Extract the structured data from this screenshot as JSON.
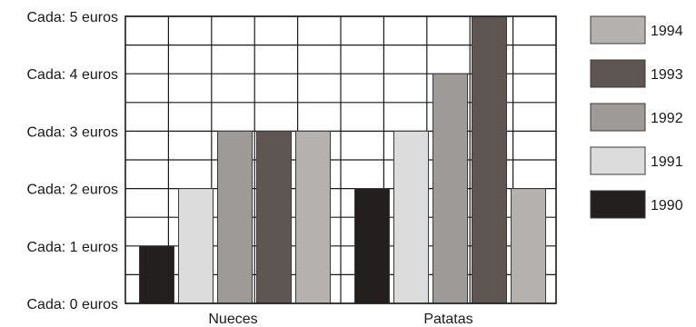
{
  "chart_data": {
    "type": "bar",
    "categories": [
      "Nueces",
      "Patatas"
    ],
    "series": [
      {
        "name": "1990",
        "values": [
          1,
          2
        ],
        "color": "#231f1e"
      },
      {
        "name": "1991",
        "values": [
          2,
          3
        ],
        "color": "#dcdcdc"
      },
      {
        "name": "1992",
        "values": [
          3,
          4
        ],
        "color": "#9e9a98"
      },
      {
        "name": "1993",
        "values": [
          3,
          5
        ],
        "color": "#5d5653"
      },
      {
        "name": "1994",
        "values": [
          3,
          2
        ],
        "color": "#b4b1af"
      }
    ],
    "y_ticks": [
      {
        "value": 0,
        "label": "Cada: 0 euros"
      },
      {
        "value": 1,
        "label": "Cada: 1 euros"
      },
      {
        "value": 2,
        "label": "Cada: 2 euros"
      },
      {
        "value": 3,
        "label": "Cada: 3 euros"
      },
      {
        "value": 4,
        "label": "Cada: 4 euros"
      },
      {
        "value": 5,
        "label": "Cada: 5 euros"
      }
    ],
    "ylim": [
      0,
      5
    ],
    "grid": true,
    "legend_position": "right",
    "legend_order": [
      "1994",
      "1993",
      "1992",
      "1991",
      "1990"
    ]
  }
}
